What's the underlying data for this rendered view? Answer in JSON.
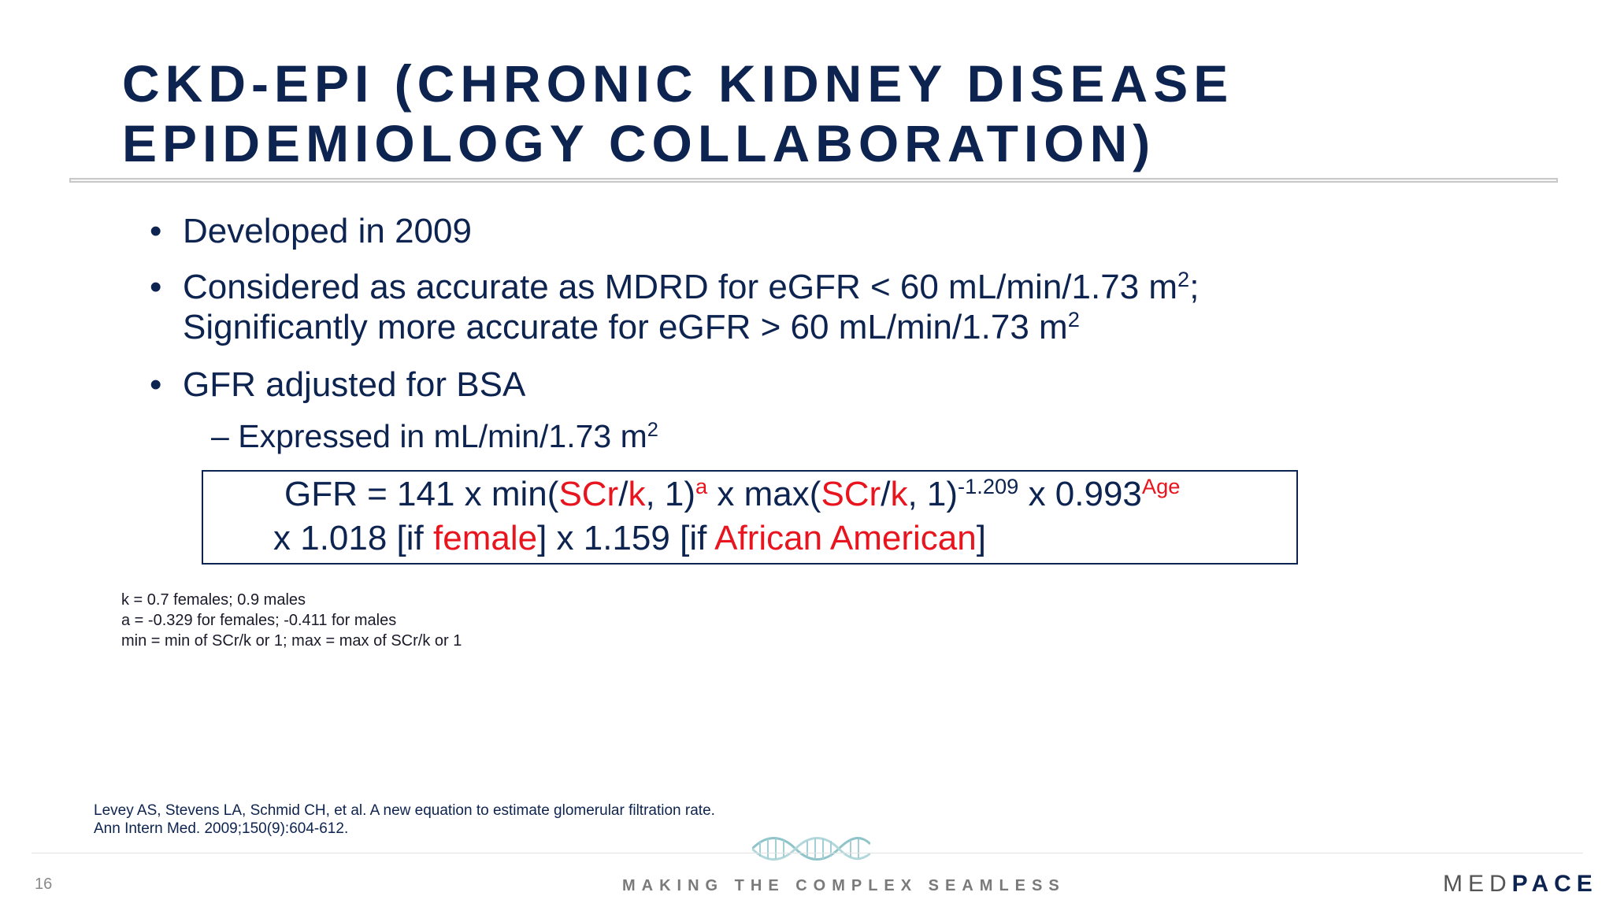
{
  "slide": {
    "title_line1": "CKD-EPI (CHRONIC KIDNEY DISEASE",
    "title_line2": "EPIDEMIOLOGY COLLABORATION)",
    "bullets": [
      {
        "dot": "•",
        "text": "Developed in 2009"
      },
      {
        "dot": "•",
        "line1": "Considered as accurate as MDRD for eGFR < 60 mL/min/1.73 m",
        "line1_sup": "2",
        "line1_tail": ";",
        "line2": "Significantly more accurate for eGFR > 60 mL/min/1.73 m",
        "line2_sup": "2"
      },
      {
        "dot": "•",
        "text": "GFR adjusted for BSA"
      }
    ],
    "sub_bullet": {
      "dash": "–",
      "text": "Expressed in mL/min/1.73 m",
      "sup": "2"
    },
    "formula": {
      "l1_a": "GFR = 141 x min(",
      "scr1": "SCr",
      "slash1": "/",
      "k1": "k",
      "l1_b": ", 1)",
      "exp_a": "a",
      "l1_c": " x max(",
      "scr2": "SCr",
      "slash2": "/",
      "k2": "k",
      "l1_d": ", 1)",
      "exp_b": "-1.209",
      "l1_e": " x 0.993",
      "exp_age": "Age",
      "l2_a": "x 1.018 [if ",
      "female": "female",
      "l2_b": "] x 1.159 [if ",
      "african": "African American",
      "l2_c": "]"
    },
    "notes": [
      "k = 0.7 females; 0.9 males",
      "a = -0.329 for females; -0.411 for males",
      "min = min of SCr/k or 1; max = max of SCr/k or 1"
    ],
    "reference": [
      "Levey AS, Stevens LA, Schmid CH, et al. A new equation to estimate glomerular filtration rate.",
      "Ann Intern Med. 2009;150(9):604-612."
    ]
  },
  "footer": {
    "page_number": "16",
    "tagline": "MAKING THE COMPLEX SEAMLESS",
    "brand_light": "MED",
    "brand_bold": "PACE"
  },
  "colors": {
    "navy": "#0d2350",
    "red": "#e8141e",
    "dna": "#8fc4c9"
  }
}
